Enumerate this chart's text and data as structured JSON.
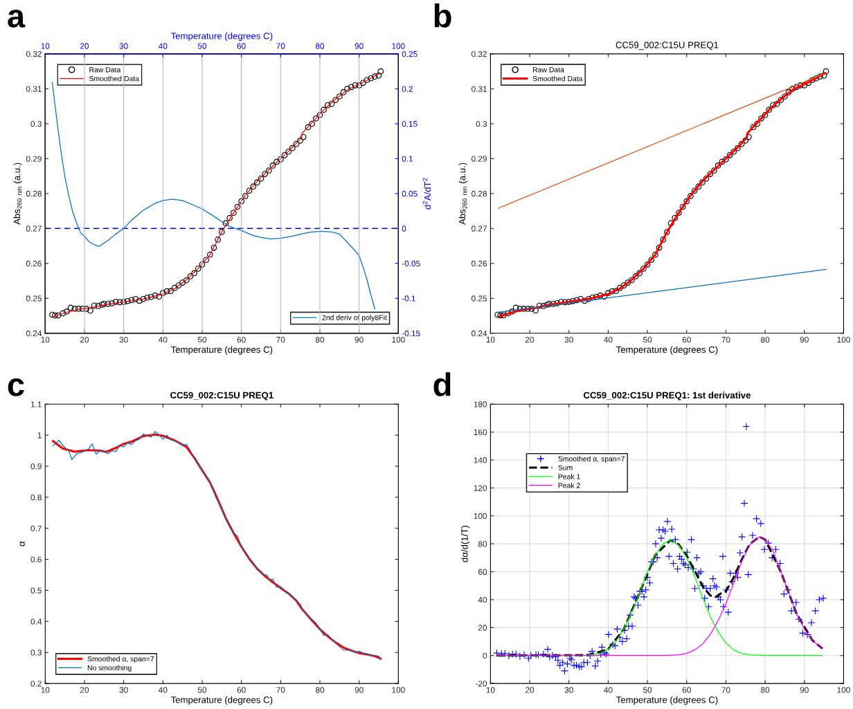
{
  "chart_data": [
    {
      "type": "line",
      "annotations": [
        "a"
      ],
      "xlabel": "Temperature (degrees C)",
      "ylabel": "Abs$_{260 nm}$ (a.u.)",
      "y2label": "d$^{2}$A/dT$^{2}$",
      "x2label": "Temperature (degrees C)",
      "xlim": [
        10,
        100
      ],
      "xticks": [
        10,
        20,
        30,
        40,
        50,
        60,
        70,
        80,
        90,
        100
      ],
      "x2lim": [
        10,
        100
      ],
      "x2ticks": [
        10,
        20,
        30,
        40,
        50,
        60,
        70,
        80,
        90,
        100
      ],
      "ylim": [
        0.24,
        0.32
      ],
      "yticks": [
        0.24,
        0.25,
        0.26,
        0.27,
        0.28,
        0.29,
        0.3,
        0.31,
        0.32
      ],
      "y2lim": [
        -0.15,
        0.25
      ],
      "y2ticks": [
        -0.15,
        -0.1,
        -0.05,
        0,
        0.05,
        0.1,
        0.15,
        0.2,
        0.25
      ],
      "grid": "x",
      "legend": [
        "top left",
        "bottom right"
      ],
      "ref_lines": [
        {
          "axis": "y2",
          "value": 0,
          "color": "#0000ff",
          "line_style": "dashed"
        }
      ],
      "series": [
        {
          "name": "Raw Data",
          "type": "scatter",
          "marker": "circle",
          "color": "#000000",
          "x": [
            11.8,
            12.5,
            13.3,
            14.5,
            15.5,
            16.5,
            17.5,
            18.5,
            19.5,
            20.5,
            21.5,
            22.5,
            23.5,
            24.5,
            25,
            26,
            27,
            28,
            29,
            30,
            31,
            32,
            33,
            34,
            35,
            36,
            37,
            38,
            39,
            40,
            41,
            42,
            43,
            44,
            45,
            46,
            47,
            48,
            49,
            50,
            51,
            52,
            53,
            54,
            55,
            56,
            57,
            58,
            59,
            60,
            61,
            62,
            63,
            64,
            65,
            66,
            67,
            68,
            69,
            70,
            71,
            72,
            73,
            74,
            75,
            75.8,
            77,
            78,
            79,
            80,
            81,
            82,
            83,
            84,
            85,
            86,
            87,
            88,
            89,
            90,
            91,
            92,
            93,
            94,
            95,
            95.5
          ],
          "values": [
            0.2453,
            0.2451,
            0.2451,
            0.2457,
            0.2462,
            0.2473,
            0.247,
            0.247,
            0.247,
            0.247,
            0.2465,
            0.2479,
            0.2478,
            0.2482,
            0.2484,
            0.2484,
            0.2486,
            0.249,
            0.2489,
            0.249,
            0.2492,
            0.2495,
            0.2498,
            0.2493,
            0.2498,
            0.2502,
            0.2504,
            0.2508,
            0.2505,
            0.2515,
            0.252,
            0.2521,
            0.253,
            0.2537,
            0.2545,
            0.2552,
            0.2563,
            0.2572,
            0.2585,
            0.2597,
            0.261,
            0.2625,
            0.2645,
            0.2668,
            0.269,
            0.2715,
            0.273,
            0.2745,
            0.2762,
            0.2778,
            0.2793,
            0.2808,
            0.282,
            0.2832,
            0.2843,
            0.2856,
            0.2866,
            0.288,
            0.2891,
            0.2898,
            0.291,
            0.292,
            0.293,
            0.2942,
            0.2952,
            0.2962,
            0.299,
            0.3,
            0.3015,
            0.3025,
            0.304,
            0.3053,
            0.3057,
            0.3068,
            0.3078,
            0.309,
            0.31,
            0.3105,
            0.311,
            0.311,
            0.3117,
            0.3125,
            0.313,
            0.3135,
            0.3138,
            0.315
          ]
        },
        {
          "name": "Smoothed Data",
          "type": "line",
          "color": "#ff0000",
          "x": [
            12.3,
            15,
            18,
            21,
            25,
            30,
            35,
            40,
            43,
            46,
            49,
            52,
            55,
            58,
            61,
            64,
            67,
            70,
            73,
            75.3,
            75.5,
            78,
            81,
            84,
            87,
            90,
            93,
            95.3
          ],
          "values": [
            0.2448,
            0.2458,
            0.2467,
            0.2472,
            0.2481,
            0.249,
            0.2498,
            0.2512,
            0.2528,
            0.2553,
            0.2585,
            0.2625,
            0.269,
            0.2745,
            0.2795,
            0.2835,
            0.2868,
            0.29,
            0.2932,
            0.296,
            0.2973,
            0.3003,
            0.304,
            0.307,
            0.3097,
            0.3113,
            0.313,
            0.3145
          ]
        },
        {
          "name": "2nd deriv of poly8Fit",
          "axis": "y2",
          "color": "#0072bd",
          "x": [
            11.8,
            13,
            14,
            15,
            16,
            17,
            18,
            19,
            20,
            21,
            22,
            23.4,
            24,
            26,
            28,
            30,
            32,
            35,
            38,
            40,
            42.5,
            45,
            48,
            50,
            52,
            55,
            57,
            60,
            63,
            65,
            67.5,
            70,
            73,
            76,
            78,
            80.3,
            83,
            85,
            87,
            89,
            90,
            91,
            92,
            93,
            94
          ],
          "values": [
            0.209,
            0.154,
            0.111,
            0.075,
            0.047,
            0.024,
            0.008,
            -0.006,
            -0.011,
            -0.018,
            -0.022,
            -0.025,
            -0.025,
            -0.017,
            -0.008,
            0,
            0.012,
            0.026,
            0.036,
            0.04,
            0.042,
            0.04,
            0.033,
            0.028,
            0.021,
            0.01,
            0.003,
            -0.003,
            -0.01,
            -0.013,
            -0.015,
            -0.014,
            -0.011,
            -0.007,
            -0.005,
            -0.004,
            -0.005,
            -0.008,
            -0.02,
            -0.032,
            -0.039,
            -0.055,
            -0.073,
            -0.095,
            -0.115
          ]
        }
      ]
    },
    {
      "type": "line",
      "annotations": [
        "b"
      ],
      "title": "CC59_002:C15U PREQ1",
      "xlabel": "Temperature (degrees C)",
      "ylabel": "Abs$_{260 nm}$ (a.u.)",
      "xlim": [
        10,
        100
      ],
      "xticks": [
        10,
        20,
        30,
        40,
        50,
        60,
        70,
        80,
        90,
        100
      ],
      "ylim": [
        0.24,
        0.32
      ],
      "yticks": [
        0.24,
        0.25,
        0.26,
        0.27,
        0.28,
        0.29,
        0.3,
        0.31,
        0.32
      ],
      "legend": "top left",
      "series": [
        {
          "name": "Raw Data",
          "type": "scatter",
          "marker": "circle",
          "color": "#000000",
          "x": [
            11.8,
            12.5,
            13.3,
            14.5,
            15.5,
            16.5,
            17.5,
            18.5,
            19.5,
            20.5,
            21.5,
            22.5,
            23.5,
            24.5,
            25,
            26,
            27,
            28,
            29,
            30,
            31,
            32,
            33,
            34,
            35,
            36,
            37,
            38,
            39,
            40,
            41,
            42,
            43,
            44,
            45,
            46,
            47,
            48,
            49,
            50,
            51,
            52,
            53,
            54,
            55,
            56,
            57,
            58,
            59,
            60,
            61,
            62,
            63,
            64,
            65,
            66,
            67,
            68,
            69,
            70,
            71,
            72,
            73,
            74,
            75,
            75.8,
            77,
            78,
            79,
            80,
            81,
            82,
            83,
            84,
            85,
            86,
            87,
            88,
            89,
            90,
            91,
            92,
            93,
            94,
            95,
            95.5
          ],
          "values": [
            0.2453,
            0.2451,
            0.2451,
            0.2457,
            0.2462,
            0.2473,
            0.247,
            0.247,
            0.247,
            0.247,
            0.2465,
            0.2479,
            0.2478,
            0.2482,
            0.2484,
            0.2484,
            0.2486,
            0.249,
            0.2489,
            0.249,
            0.2492,
            0.2495,
            0.2498,
            0.2493,
            0.2498,
            0.2502,
            0.2504,
            0.2508,
            0.2505,
            0.2515,
            0.252,
            0.2521,
            0.253,
            0.2537,
            0.2545,
            0.2552,
            0.2563,
            0.2572,
            0.2585,
            0.2597,
            0.261,
            0.2625,
            0.2645,
            0.2668,
            0.269,
            0.2715,
            0.273,
            0.2745,
            0.2762,
            0.2778,
            0.2793,
            0.2808,
            0.282,
            0.2832,
            0.2843,
            0.2856,
            0.2866,
            0.288,
            0.2891,
            0.2898,
            0.291,
            0.292,
            0.293,
            0.2942,
            0.2952,
            0.2962,
            0.299,
            0.3,
            0.3015,
            0.3025,
            0.304,
            0.3053,
            0.3057,
            0.3068,
            0.3078,
            0.309,
            0.31,
            0.3105,
            0.311,
            0.311,
            0.3117,
            0.3125,
            0.313,
            0.3135,
            0.3138,
            0.315
          ]
        },
        {
          "name": "Smoothed Data",
          "type": "line",
          "color": "#ff0000",
          "x": [
            12.3,
            15,
            18,
            21,
            25,
            30,
            35,
            40,
            43,
            46,
            49,
            52,
            55,
            58,
            61,
            64,
            67,
            70,
            73,
            75.3,
            75.5,
            78,
            81,
            84,
            87,
            90,
            93,
            95.3
          ],
          "values": [
            0.2448,
            0.2458,
            0.2467,
            0.2472,
            0.2481,
            0.249,
            0.2498,
            0.2512,
            0.2528,
            0.2553,
            0.2585,
            0.2625,
            0.269,
            0.2745,
            0.2795,
            0.2835,
            0.2868,
            0.29,
            0.2932,
            0.296,
            0.2973,
            0.3003,
            0.304,
            0.307,
            0.3097,
            0.3113,
            0.313,
            0.3145
          ]
        },
        {
          "color": "#d95319",
          "x": [
            12,
            95.5
          ],
          "values": [
            0.2758,
            0.3145
          ]
        },
        {
          "color": "#0072bd",
          "x": [
            12,
            95.5
          ],
          "values": [
            0.246,
            0.2583
          ]
        }
      ]
    },
    {
      "type": "line",
      "annotations": [
        "c"
      ],
      "title": "CC59_002:C15U PREQ1",
      "xlabel": "Temperature (degrees C)",
      "ylabel": "α",
      "xlim": [
        10,
        100
      ],
      "xticks": [
        10,
        20,
        30,
        40,
        50,
        60,
        70,
        80,
        90,
        100
      ],
      "ylim": [
        0.2,
        1.1
      ],
      "yticks": [
        0.2,
        0.3,
        0.4,
        0.5,
        0.6,
        0.7,
        0.8,
        0.9,
        1,
        1.1
      ],
      "legend": "bottom left",
      "series": [
        {
          "name": "Smoothed α, span=7",
          "color": "#ff0000",
          "x": [
            12,
            14.5,
            17.5,
            19,
            21,
            24,
            25.5,
            28,
            30,
            32,
            35,
            38,
            40,
            43,
            46,
            48,
            50,
            52,
            54,
            56,
            58,
            60,
            62,
            64,
            66,
            68,
            70,
            72,
            74,
            75.5,
            78,
            80,
            82,
            84,
            86,
            88,
            90,
            92,
            94,
            95.5
          ],
          "values": [
            0.981,
            0.957,
            0.947,
            0.949,
            0.952,
            0.95,
            0.946,
            0.959,
            0.972,
            0.979,
            0.997,
            1.002,
            0.998,
            0.983,
            0.962,
            0.927,
            0.887,
            0.848,
            0.792,
            0.733,
            0.685,
            0.641,
            0.602,
            0.57,
            0.546,
            0.526,
            0.508,
            0.49,
            0.467,
            0.439,
            0.403,
            0.375,
            0.352,
            0.332,
            0.316,
            0.306,
            0.298,
            0.294,
            0.288,
            0.28
          ]
        },
        {
          "name": "No smoothing",
          "color": "#0072bd",
          "x": [
            12,
            13.5,
            15,
            16,
            16.8,
            18,
            19.5,
            21,
            22,
            23,
            24,
            25,
            26,
            27,
            28,
            29,
            30,
            31,
            32,
            33,
            34,
            35,
            36,
            37,
            38,
            39,
            40,
            41,
            42,
            43,
            44,
            45,
            46,
            47,
            48,
            50,
            52,
            53.5,
            54.5,
            56,
            57,
            58,
            59,
            60,
            61,
            62,
            64,
            65.5,
            66.5,
            67,
            68,
            69,
            70,
            71,
            73,
            75,
            76,
            77,
            79,
            81,
            82,
            84,
            86,
            88,
            89,
            90,
            91,
            93,
            95,
            95.5
          ],
          "values": [
            0.966,
            0.983,
            0.96,
            0.95,
            0.921,
            0.94,
            0.946,
            0.955,
            0.972,
            0.939,
            0.95,
            0.947,
            0.94,
            0.95,
            0.947,
            0.968,
            0.962,
            0.976,
            0.97,
            0.982,
            0.987,
            1.004,
            0.998,
            0.994,
            1.012,
            1.001,
            0.987,
            1,
            0.985,
            0.982,
            0.975,
            0.968,
            0.97,
            0.95,
            0.925,
            0.888,
            0.85,
            0.8,
            0.774,
            0.73,
            0.705,
            0.685,
            0.675,
            0.64,
            0.624,
            0.605,
            0.57,
            0.55,
            0.55,
            0.535,
            0.536,
            0.51,
            0.512,
            0.5,
            0.48,
            0.455,
            0.43,
            0.418,
            0.395,
            0.355,
            0.357,
            0.33,
            0.308,
            0.307,
            0.299,
            0.304,
            0.298,
            0.292,
            0.288,
            0.278
          ]
        }
      ]
    },
    {
      "type": "line",
      "annotations": [
        "d"
      ],
      "title": "CC59_002:C15U PREQ1: 1st derivative",
      "xlabel": "Temperature (degrees C)",
      "ylabel": "dα/d(1/T)",
      "xlim": [
        10,
        100
      ],
      "xticks": [
        10,
        20,
        30,
        40,
        50,
        60,
        70,
        80,
        90,
        100
      ],
      "ylim": [
        -20,
        180
      ],
      "yticks": [
        -20,
        0,
        20,
        40,
        60,
        80,
        100,
        120,
        140,
        160,
        180
      ],
      "grid": true,
      "legend": "top left",
      "series": [
        {
          "name": "Smoothed α, span=7",
          "type": "scatter",
          "marker": "cross",
          "color": "#0000ff",
          "x": [
            11.6,
            12.8,
            13.7,
            14.7,
            15.6,
            16.5,
            17.5,
            18.6,
            19.7,
            20.3,
            21.6,
            22.2,
            23.5,
            24.6,
            25.1,
            25.8,
            26.6,
            27.2,
            27.7,
            28.4,
            28.9,
            29.6,
            30.3,
            30.7,
            31.3,
            31.9,
            32.6,
            33.2,
            33.8,
            34.7,
            35.4,
            35.9,
            36.7,
            37.3,
            38.1,
            38.4,
            39.1,
            39.5,
            40.1,
            41.2,
            41.7,
            42.3,
            43.0,
            43.6,
            44.2,
            44.7,
            45.2,
            45.6,
            46.1,
            46.6,
            47.0,
            47.6,
            48.1,
            48.6,
            49.1,
            49.6,
            50.0,
            50.6,
            51.1,
            51.5,
            52.1,
            52.5,
            53.0,
            53.5,
            54.0,
            54.5,
            55.1,
            55.5,
            56.2,
            56.6,
            57.1,
            57.7,
            58.2,
            58.7,
            59.2,
            59.6,
            60.1,
            60.4,
            61.2,
            61.7,
            62.1,
            62.6,
            63.1,
            63.6,
            64.1,
            64.6,
            65.0,
            65.6,
            66.0,
            66.7,
            67.1,
            67.6,
            68.1,
            68.6,
            69.2,
            69.4,
            70.1,
            70.6,
            71.1,
            71.6,
            72.5,
            73.0,
            73.6,
            74.1,
            74.7,
            75.2,
            75.7,
            76.8,
            77.8,
            78.9,
            79.8,
            80.8,
            81.8,
            82.7,
            83.8,
            84.8,
            85.8,
            86.7,
            87.9,
            88.6,
            89.6,
            90.8,
            91.8,
            92.8,
            93.8,
            94.8
          ],
          "values": [
            1.8,
            1.5,
            1.5,
            0,
            1,
            1,
            -0.5,
            0.5,
            -2,
            0,
            0.5,
            0.5,
            1,
            4.5,
            -1,
            0,
            -1,
            -3.5,
            -7,
            -5,
            -11,
            -6,
            -2,
            -3,
            -7,
            -7,
            -8,
            -8,
            -5,
            -5,
            0,
            3,
            -7.5,
            -4,
            1,
            6,
            2,
            1,
            15,
            8,
            7,
            19,
            13,
            10,
            18,
            12,
            21,
            29,
            21,
            42,
            41,
            36,
            46,
            46,
            42,
            47,
            56,
            52,
            67,
            67,
            80,
            70,
            90,
            84,
            90,
            89,
            96,
            71,
            90.5,
            66,
            83,
            62,
            71,
            69,
            66,
            65,
            74,
            63,
            83,
            62,
            48,
            70,
            59,
            60,
            50,
            41,
            48,
            35,
            48,
            55,
            50,
            49,
            42,
            40,
            71,
            35,
            47,
            31,
            59,
            53,
            59,
            56,
            73.5,
            85,
            109,
            164,
            58,
            86,
            98,
            94.5,
            76,
            80.5,
            70,
            76,
            66,
            44,
            47,
            32,
            38,
            26,
            16,
            15,
            23.5,
            32,
            40,
            41
          ]
        },
        {
          "name": "Sum",
          "line_style": "dashed",
          "color": "#000000",
          "x": [
            11.6,
            35,
            40,
            44,
            48,
            52,
            55.8,
            58,
            60,
            62,
            64,
            66,
            67.5,
            69,
            70,
            72,
            74,
            76,
            78.5,
            80,
            84,
            88,
            92,
            94.6
          ],
          "values": [
            0,
            0.3,
            4.5,
            19,
            45,
            72,
            82.5,
            79.5,
            71.5,
            61,
            50,
            43,
            42,
            45,
            46,
            56,
            68.5,
            79.5,
            85,
            83,
            60,
            30,
            11,
            5
          ]
        },
        {
          "name": "Peak 1",
          "color": "#00ff00",
          "x": [
            11.6,
            35,
            38,
            40,
            42,
            44,
            46,
            48,
            50,
            52,
            54,
            55.8,
            58,
            60,
            62,
            64,
            66,
            68,
            70,
            72,
            74,
            76,
            80,
            94.6
          ],
          "values": [
            0,
            0.3,
            1.5,
            4.5,
            10,
            19,
            31,
            45,
            60,
            72,
            80,
            82.5,
            79,
            70,
            57,
            42,
            28,
            17,
            9,
            4,
            1.5,
            0.5,
            0,
            0
          ]
        },
        {
          "name": "Peak 2",
          "color": "#ff00ff",
          "x": [
            11.6,
            55,
            58,
            60,
            62,
            64,
            66,
            68,
            70,
            72,
            74,
            76,
            78.5,
            80,
            82,
            84,
            86,
            88,
            90,
            92,
            94.6
          ],
          "values": [
            0,
            0,
            0.5,
            1.5,
            4,
            8,
            15,
            25,
            37,
            52,
            67,
            79,
            85,
            83,
            75,
            60,
            45,
            30,
            19,
            11,
            5
          ]
        }
      ]
    }
  ]
}
